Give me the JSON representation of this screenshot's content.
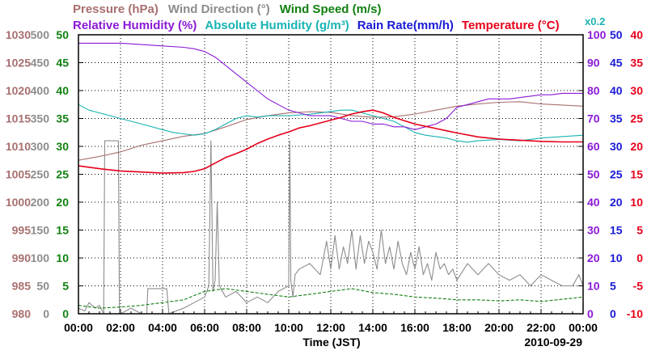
{
  "chart_data": {
    "type": "line",
    "date": "2010-09-29",
    "xlabel": "Time (JST)",
    "x_ticks": [
      "00:00",
      "02:00",
      "04:00",
      "06:00",
      "08:00",
      "10:00",
      "12:00",
      "14:00",
      "16:00",
      "18:00",
      "20:00",
      "22:00",
      "00:00"
    ],
    "legend_row1": [
      {
        "label": "Pressure (hPa)",
        "color": "#a86f6f"
      },
      {
        "label": "Wind Direction (°)",
        "color": "#8c8c8c"
      },
      {
        "label": "Wind Speed (m/s)",
        "color": "#108010"
      }
    ],
    "legend_row2": [
      {
        "label": "Relative Humidity (%)",
        "color": "#8a1ad6"
      },
      {
        "label": "Absolute Humidity (g/m³)",
        "color": "#19b3b3"
      },
      {
        "label": "Rain Rate(mm/h)",
        "color": "#1a1ad6"
      },
      {
        "label": "Temperature (°C)",
        "color": "#e6001a"
      }
    ],
    "absolute_humidity_scale_note": "x0.2",
    "axes": {
      "pressure": {
        "ticks": [
          "980",
          "985",
          "990",
          "995",
          "1000",
          "1005",
          "1010",
          "1015",
          "1020",
          "1025",
          "1030"
        ],
        "range": [
          980,
          1030
        ],
        "color": "#a86f6f"
      },
      "wind_direction": {
        "ticks": [
          "0",
          "50",
          "100",
          "150",
          "200",
          "250",
          "300",
          "350",
          "400",
          "450",
          "500"
        ],
        "range": [
          0,
          500
        ],
        "color": "#8c8c8c"
      },
      "wind_speed": {
        "ticks": [
          "0",
          "5",
          "10",
          "15",
          "20",
          "25",
          "30",
          "35",
          "40",
          "45",
          "50"
        ],
        "range": [
          0,
          50
        ],
        "color": "#108010"
      },
      "relative_humidity": {
        "ticks": [
          "0",
          "10",
          "20",
          "30",
          "40",
          "50",
          "60",
          "70",
          "80",
          "90",
          "100"
        ],
        "range": [
          0,
          100
        ],
        "color": "#8a1ad6"
      },
      "rain_rate": {
        "ticks": [
          "0",
          "5",
          "10",
          "15",
          "20",
          "25",
          "30",
          "35",
          "40",
          "45",
          "50"
        ],
        "range": [
          0,
          50
        ],
        "color": "#1a1ad6"
      },
      "temperature": {
        "ticks": [
          "-10",
          "-5",
          "0",
          "5",
          "10",
          "15",
          "20",
          "25",
          "30",
          "35",
          "40"
        ],
        "range": [
          -10,
          40
        ],
        "color": "#e6001a"
      }
    },
    "series": [
      {
        "name": "Pressure (hPa)",
        "axis": "pressure",
        "color": "#a86f6f",
        "x": [
          0,
          1,
          2,
          3,
          4,
          5,
          6,
          7,
          8,
          9,
          10,
          11,
          12,
          13,
          14,
          15,
          16,
          17,
          18,
          19,
          20,
          21,
          22,
          23,
          24
        ],
        "y": [
          1007.5,
          1008.2,
          1009,
          1010.2,
          1011,
          1011.8,
          1012.3,
          1013.5,
          1014.8,
          1015.5,
          1016,
          1016.2,
          1016.1,
          1015.5,
          1015.2,
          1015.3,
          1015.8,
          1016.5,
          1017.2,
          1017.6,
          1017.9,
          1018,
          1017.6,
          1017.4,
          1017.2
        ]
      },
      {
        "name": "Relative Humidity (%)",
        "axis": "relative_humidity",
        "color": "#8a1ad6",
        "x": [
          0,
          1,
          2,
          3,
          4,
          5,
          5.5,
          6,
          6.5,
          7,
          7.5,
          8,
          8.5,
          9,
          9.5,
          10,
          10.5,
          11,
          11.5,
          12,
          12.5,
          13,
          13.5,
          14,
          14.5,
          15,
          15.5,
          16,
          16.5,
          17,
          17.5,
          18,
          18.5,
          19,
          19.5,
          20,
          20.5,
          21,
          21.5,
          22,
          22.5,
          23,
          23.5,
          24
        ],
        "y": [
          97,
          97,
          97,
          96.5,
          96,
          95.5,
          95,
          94,
          92,
          89,
          86,
          83,
          80,
          77,
          75,
          73,
          72,
          71,
          71,
          71,
          70,
          69,
          69,
          68,
          68,
          67,
          67,
          66,
          67,
          68,
          70,
          74,
          75,
          76,
          77,
          77,
          77,
          77.5,
          78,
          78.5,
          78.5,
          79,
          79,
          79
        ]
      },
      {
        "name": "Absolute Humidity (g/m³)",
        "axis": "relative_humidity",
        "color": "#19b3b3",
        "x": [
          0,
          0.5,
          1,
          1.5,
          2,
          3,
          4,
          4.5,
          5,
          5.5,
          6,
          6.5,
          7,
          7.5,
          8,
          8.5,
          9,
          10,
          11,
          12,
          12.5,
          13,
          13.5,
          14,
          14.5,
          15,
          15.5,
          16,
          16.5,
          17,
          17.5,
          18,
          18.5,
          19,
          20,
          21,
          22,
          23,
          24
        ],
        "y": [
          75,
          73,
          72,
          71,
          70,
          68,
          66,
          65,
          64.5,
          64,
          64.5,
          66,
          68,
          70,
          71,
          70.5,
          71,
          71,
          71.5,
          72.5,
          73,
          73,
          72,
          71,
          70,
          69,
          67,
          65,
          64,
          63.5,
          63,
          62,
          61.5,
          62,
          62.5,
          62,
          63,
          63.5,
          64
        ]
      },
      {
        "name": "Rain Rate(mm/h)",
        "axis": "rain_rate",
        "color": "#1a1ad6",
        "x": [
          0,
          24
        ],
        "y": [
          0,
          0
        ]
      },
      {
        "name": "Temperature (°C)",
        "axis": "temperature",
        "color": "#e6001a",
        "x": [
          0,
          1,
          2,
          3,
          4,
          5,
          5.5,
          6,
          6.5,
          7,
          7.5,
          8,
          8.5,
          9,
          9.5,
          10,
          10.5,
          11,
          11.5,
          12,
          12.5,
          13,
          13.5,
          14,
          14.5,
          15,
          15.5,
          16,
          16.5,
          17,
          17.5,
          18,
          19,
          20,
          21,
          22,
          23,
          24
        ],
        "y": [
          16.5,
          16,
          15.6,
          15.4,
          15.2,
          15.3,
          15.5,
          16,
          17,
          18,
          18.7,
          19.5,
          20.5,
          21.3,
          22,
          22.6,
          23.3,
          23.7,
          24.2,
          24.7,
          25.2,
          25.8,
          26.2,
          26.5,
          26,
          25.2,
          24.6,
          24,
          23.6,
          23.2,
          22.8,
          22.4,
          21.7,
          21.3,
          21.1,
          20.9,
          20.8,
          20.8
        ]
      },
      {
        "name": "Wind Direction (°)",
        "axis": "wind_direction",
        "color": "#8c8c8c",
        "x": [
          0,
          0.3,
          0.5,
          0.8,
          1,
          1.2,
          1.25,
          1.3,
          1.9,
          1.95,
          2,
          2.5,
          3,
          3.25,
          3.3,
          4.2,
          4.3,
          5,
          5.5,
          6,
          6.2,
          6.3,
          6.4,
          6.5,
          6.6,
          6.7,
          7,
          7.5,
          8,
          8.5,
          9,
          9.5,
          10,
          10.05,
          10.1,
          10.2,
          10.3,
          10.5,
          11,
          11.5,
          11.8,
          12,
          12.2,
          12.4,
          12.6,
          12.8,
          13,
          13.2,
          13.4,
          13.6,
          13.8,
          14,
          14.2,
          14.4,
          14.6,
          14.8,
          15,
          15.2,
          15.4,
          15.6,
          15.8,
          16,
          16.2,
          16.4,
          16.6,
          16.8,
          17,
          17.2,
          17.4,
          17.6,
          17.8,
          18,
          18.5,
          19,
          19.5,
          20,
          20.5,
          21,
          21.5,
          22,
          22.5,
          23,
          23.5,
          23.8,
          24
        ],
        "y": [
          10,
          5,
          20,
          10,
          15,
          0,
          310,
          310,
          310,
          0,
          0,
          10,
          0,
          0,
          45,
          45,
          0,
          10,
          20,
          30,
          50,
          310,
          40,
          60,
          200,
          50,
          30,
          40,
          20,
          30,
          20,
          40,
          50,
          310,
          60,
          30,
          70,
          80,
          90,
          70,
          130,
          80,
          140,
          80,
          120,
          90,
          150,
          80,
          140,
          90,
          130,
          110,
          80,
          150,
          90,
          120,
          80,
          130,
          90,
          70,
          110,
          80,
          120,
          70,
          90,
          60,
          110,
          80,
          90,
          70,
          80,
          60,
          90,
          70,
          90,
          70,
          60,
          70,
          50,
          70,
          60,
          50,
          50,
          70,
          50
        ]
      },
      {
        "name": "Wind Speed (m/s)",
        "axis": "wind_speed",
        "color": "#108010",
        "x": [
          0,
          1,
          2,
          3,
          4,
          5,
          6,
          7,
          8,
          9,
          10,
          11,
          12,
          13,
          14,
          15,
          16,
          17,
          18,
          19,
          20,
          21,
          22,
          23,
          24
        ],
        "y": [
          1.5,
          1,
          1.2,
          1.5,
          2,
          2.5,
          4,
          4.5,
          4,
          3.5,
          3,
          3.5,
          4,
          4.5,
          3.8,
          3.5,
          3,
          2.8,
          2.5,
          2.5,
          2.3,
          2.5,
          2.2,
          2.6,
          3
        ]
      }
    ]
  }
}
